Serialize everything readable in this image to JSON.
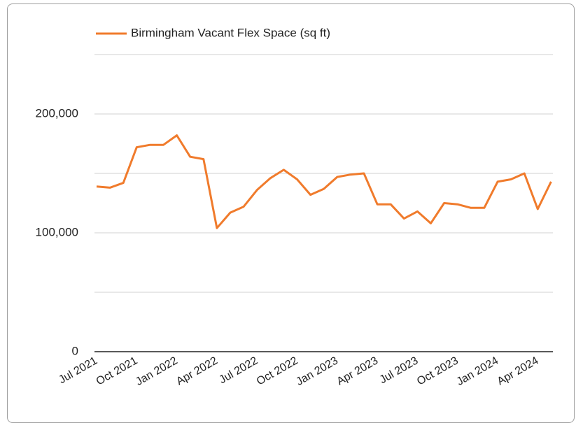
{
  "chart_data": {
    "type": "line",
    "x": [
      "2021-07",
      "2021-08",
      "2021-09",
      "2021-10",
      "2021-11",
      "2021-12",
      "2022-01",
      "2022-02",
      "2022-03",
      "2022-04",
      "2022-05",
      "2022-06",
      "2022-07",
      "2022-08",
      "2022-09",
      "2022-10",
      "2022-11",
      "2022-12",
      "2023-01",
      "2023-02",
      "2023-03",
      "2023-04",
      "2023-05",
      "2023-06",
      "2023-07",
      "2023-08",
      "2023-09",
      "2023-10",
      "2023-11",
      "2023-12",
      "2024-01",
      "2024-02",
      "2024-03",
      "2024-04",
      "2024-05"
    ],
    "series": [
      {
        "name": "Birmingham Vacant Flex Space (sq ft)",
        "color": "#f07b2c",
        "values": [
          139000,
          138000,
          142000,
          172000,
          174000,
          174000,
          182000,
          164000,
          162000,
          104000,
          117000,
          122000,
          136000,
          146000,
          153000,
          145000,
          132000,
          137000,
          147000,
          149000,
          150000,
          124000,
          124000,
          112000,
          118000,
          108000,
          125000,
          124000,
          121000,
          121000,
          143000,
          145000,
          150000,
          120000,
          143000
        ]
      }
    ],
    "ylim": [
      0,
      250000
    ],
    "yticks": [
      0,
      {
        "value": 100000,
        "label": "100,000"
      },
      {
        "value": 200000,
        "label": "200,000"
      }
    ],
    "minor_yticks": [
      50000,
      150000,
      250000
    ],
    "xticks": [
      {
        "value": "2021-07",
        "label": "Jul 2021"
      },
      {
        "value": "2021-10",
        "label": "Oct 2021"
      },
      {
        "value": "2022-01",
        "label": "Jan 2022"
      },
      {
        "value": "2022-04",
        "label": "Apr 2022"
      },
      {
        "value": "2022-07",
        "label": "Jul 2022"
      },
      {
        "value": "2022-10",
        "label": "Oct 2022"
      },
      {
        "value": "2023-01",
        "label": "Jan 2023"
      },
      {
        "value": "2023-04",
        "label": "Apr 2023"
      },
      {
        "value": "2023-07",
        "label": "Jul 2023"
      },
      {
        "value": "2023-10",
        "label": "Oct 2023"
      },
      {
        "value": "2024-01",
        "label": "Jan 2024"
      },
      {
        "value": "2024-04",
        "label": "Apr 2024"
      }
    ],
    "grid": true,
    "legend": "top"
  }
}
